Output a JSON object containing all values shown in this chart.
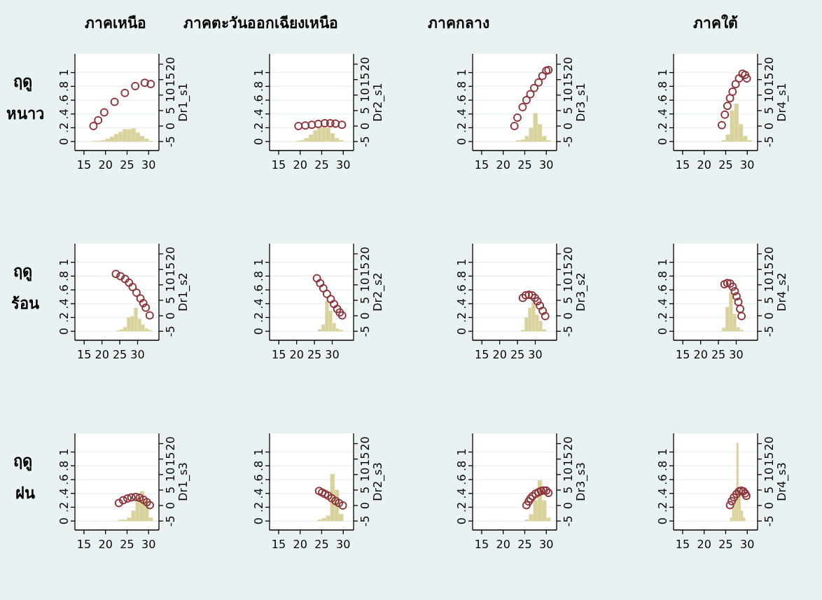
{
  "chart_data": [
    {
      "type": "scatter",
      "title": "ภาคเหนือ",
      "annotations": [
        "ฤดู หนาว"
      ],
      "y2label": "Dr1_s1",
      "xlim": [
        12.9,
        32.4
      ],
      "xticks": [
        15,
        20,
        25,
        30
      ],
      "ylim": [
        -0.13,
        1.27
      ],
      "yticks": [
        {
          "value": 0,
          "label": "0"
        },
        {
          "value": 0.2,
          "label": ".2"
        },
        {
          "value": 0.4,
          "label": ".4"
        },
        {
          "value": 0.6,
          "label": ".6"
        },
        {
          "value": 0.8,
          "label": ".8"
        },
        {
          "value": 1,
          "label": "1"
        }
      ],
      "y2lim": [
        -7.9,
        23.3
      ],
      "y2ticks": [
        -5,
        0,
        5,
        10,
        15,
        20
      ],
      "grid": "y",
      "marker": "circle",
      "series": [
        {
          "type": "histogram",
          "color": "#d9d29d",
          "bins": [
            17,
            18,
            19,
            20,
            21,
            22,
            23,
            24,
            25,
            26,
            27,
            28,
            29,
            30,
            31
          ],
          "values": [
            0.01,
            0.01,
            0.02,
            0.04,
            0.07,
            0.11,
            0.14,
            0.18,
            0.18,
            0.19,
            0.13,
            0.08,
            0.04,
            0.01
          ]
        },
        {
          "type": "scatter",
          "axis": "y2",
          "color": "#8c3339",
          "x": [
            17.2,
            18.3,
            19.7,
            22.1,
            24.5,
            26.9,
            29.1,
            30.5
          ],
          "values": [
            0.0,
            1.9,
            4.4,
            7.8,
            10.7,
            12.9,
            14.0,
            13.6
          ]
        }
      ]
    },
    {
      "type": "scatter",
      "title": "ภาคตะวันออกเฉียงเหนือ",
      "y2label": "Dr2_s1",
      "xlim": [
        12.9,
        32.4
      ],
      "xticks": [
        15,
        20,
        25,
        30
      ],
      "ylim": [
        -0.13,
        1.27
      ],
      "yticks": [
        {
          "value": 0,
          "label": "0"
        },
        {
          "value": 0.2,
          "label": ".2"
        },
        {
          "value": 0.4,
          "label": ".4"
        },
        {
          "value": 0.6,
          "label": ".6"
        },
        {
          "value": 0.8,
          "label": ".8"
        },
        {
          "value": 1,
          "label": "1"
        }
      ],
      "y2lim": [
        -7.9,
        23.3
      ],
      "y2ticks": [
        -5,
        0,
        5,
        10,
        15,
        20
      ],
      "grid": "y",
      "marker": "circle",
      "series": [
        {
          "type": "histogram",
          "color": "#d9d29d",
          "bins": [
            19,
            20,
            21,
            22,
            23,
            24,
            25,
            26,
            27,
            28,
            29,
            30
          ],
          "values": [
            0.01,
            0.02,
            0.05,
            0.1,
            0.16,
            0.2,
            0.2,
            0.2,
            0.12,
            0.05,
            0.02
          ]
        },
        {
          "type": "scatter",
          "axis": "y2",
          "color": "#8c3339",
          "x": [
            19.6,
            21.2,
            22.7,
            24.2,
            25.7,
            27.0,
            28.2,
            29.7
          ],
          "values": [
            0.0,
            0.2,
            0.4,
            0.7,
            0.9,
            0.9,
            0.8,
            0.4
          ]
        }
      ]
    },
    {
      "type": "scatter",
      "title": "ภาคกลาง",
      "y2label": "Dr3_s1",
      "xlim": [
        12.9,
        32.4
      ],
      "xticks": [
        15,
        20,
        25,
        30
      ],
      "ylim": [
        -0.13,
        1.27
      ],
      "yticks": [
        {
          "value": 0,
          "label": "0"
        },
        {
          "value": 0.2,
          "label": ".2"
        },
        {
          "value": 0.4,
          "label": ".4"
        },
        {
          "value": 0.6,
          "label": ".6"
        },
        {
          "value": 0.8,
          "label": ".8"
        },
        {
          "value": 1,
          "label": "1"
        }
      ],
      "y2lim": [
        -7.9,
        23.3
      ],
      "y2ticks": [
        -5,
        0,
        5,
        10,
        15,
        20
      ],
      "grid": "y",
      "marker": "circle",
      "series": [
        {
          "type": "histogram",
          "color": "#d9d29d",
          "bins": [
            23,
            24,
            25,
            26,
            27,
            28,
            29,
            30,
            31
          ],
          "values": [
            0.02,
            0.03,
            0.08,
            0.2,
            0.41,
            0.25,
            0.08,
            0.02
          ]
        },
        {
          "type": "scatter",
          "axis": "y2",
          "color": "#8c3339",
          "x": [
            22.6,
            23.3,
            24.5,
            25.4,
            26.3,
            27.2,
            28.2,
            29.1,
            30.0,
            30.5
          ],
          "values": [
            0.0,
            2.7,
            6.1,
            8.4,
            10.3,
            12.3,
            14.1,
            16.2,
            17.9,
            18.1
          ]
        }
      ]
    },
    {
      "type": "scatter",
      "title": "ภาคใต้",
      "y2label": "Dr4_s1",
      "xlim": [
        12.9,
        32.4
      ],
      "xticks": [
        15,
        20,
        25,
        30
      ],
      "ylim": [
        -0.13,
        1.27
      ],
      "yticks": [
        {
          "value": 0,
          "label": "0"
        },
        {
          "value": 0.2,
          "label": ".2"
        },
        {
          "value": 0.4,
          "label": ".4"
        },
        {
          "value": 0.6,
          "label": ".6"
        },
        {
          "value": 0.8,
          "label": ".8"
        },
        {
          "value": 1,
          "label": "1"
        }
      ],
      "y2lim": [
        -7.9,
        23.3
      ],
      "y2ticks": [
        -5,
        0,
        5,
        10,
        15,
        20
      ],
      "grid": "y",
      "marker": "circle",
      "series": [
        {
          "type": "histogram",
          "color": "#d9d29d",
          "bins": [
            24,
            25,
            26,
            27,
            28,
            29,
            30,
            31
          ],
          "values": [
            0.02,
            0.1,
            0.45,
            0.55,
            0.25,
            0.08,
            0.02
          ]
        },
        {
          "type": "scatter",
          "axis": "y2",
          "color": "#8c3339",
          "x": [
            24.1,
            24.8,
            25.4,
            26.0,
            26.6,
            27.3,
            28.1,
            28.9,
            29.5,
            29.9
          ],
          "values": [
            0.3,
            3.7,
            6.5,
            9.0,
            11.1,
            13.5,
            15.4,
            16.9,
            16.5,
            15.4
          ]
        }
      ]
    },
    {
      "type": "scatter",
      "annotations": [
        "ฤดู ร้อน"
      ],
      "y2label": "Dr1_s2",
      "xlim": [
        12.4,
        36
      ],
      "xticks": [
        15,
        20,
        25,
        30
      ],
      "ylim": [
        -0.13,
        1.27
      ],
      "yticks": [
        {
          "value": 0,
          "label": "0"
        },
        {
          "value": 0.2,
          "label": ".2"
        },
        {
          "value": 0.4,
          "label": ".4"
        },
        {
          "value": 0.6,
          "label": ".6"
        },
        {
          "value": 0.8,
          "label": ".8"
        },
        {
          "value": 1,
          "label": "1"
        }
      ],
      "y2lim": [
        -7.9,
        23.3
      ],
      "y2ticks": [
        -5,
        0,
        5,
        10,
        15,
        20
      ],
      "grid": "y",
      "marker": "circle",
      "series": [
        {
          "type": "histogram",
          "color": "#d9d29d",
          "bins": [
            24,
            25,
            26,
            27,
            28,
            29,
            30,
            31,
            32,
            33,
            34
          ],
          "values": [
            0.01,
            0.03,
            0.06,
            0.2,
            0.22,
            0.34,
            0.18,
            0.1,
            0.04,
            0.02
          ]
        },
        {
          "type": "scatter",
          "axis": "y2",
          "color": "#8c3339",
          "x": [
            23.9,
            25.2,
            26.5,
            27.6,
            28.6,
            29.7,
            30.8,
            31.6,
            32.3,
            33.4
          ],
          "values": [
            13.5,
            12.8,
            11.9,
            10.7,
            9.3,
            7.5,
            5.6,
            4.1,
            2.6,
            0.1
          ]
        }
      ]
    },
    {
      "type": "scatter",
      "y2label": "Dr2_s2",
      "xlim": [
        12.4,
        36
      ],
      "xticks": [
        15,
        20,
        25,
        30
      ],
      "ylim": [
        -0.13,
        1.27
      ],
      "yticks": [
        {
          "value": 0,
          "label": "0"
        },
        {
          "value": 0.2,
          "label": ".2"
        },
        {
          "value": 0.4,
          "label": ".4"
        },
        {
          "value": 0.6,
          "label": ".6"
        },
        {
          "value": 0.8,
          "label": ".8"
        },
        {
          "value": 1,
          "label": "1"
        }
      ],
      "y2lim": [
        -7.9,
        23.3
      ],
      "y2ticks": [
        -5,
        0,
        5,
        10,
        15,
        20
      ],
      "grid": "y",
      "marker": "circle",
      "series": [
        {
          "type": "histogram",
          "color": "#d9d29d",
          "bins": [
            26,
            27,
            28,
            29,
            30,
            31,
            32,
            33
          ],
          "values": [
            0.03,
            0.1,
            0.44,
            0.3,
            0.12,
            0.04,
            0.02
          ]
        },
        {
          "type": "scatter",
          "axis": "y2",
          "color": "#8c3339",
          "x": [
            25.7,
            26.6,
            27.5,
            28.5,
            29.6,
            30.5,
            31.4,
            32.1,
            32.8
          ],
          "values": [
            12.1,
            10.5,
            8.9,
            7.1,
            5.4,
            3.8,
            2.2,
            1.1,
            0.1
          ]
        }
      ]
    },
    {
      "type": "scatter",
      "y2label": "Dr3_s2",
      "xlim": [
        12.4,
        36
      ],
      "xticks": [
        15,
        20,
        25,
        30
      ],
      "ylim": [
        -0.13,
        1.27
      ],
      "yticks": [
        {
          "value": 0,
          "label": "0"
        },
        {
          "value": 0.2,
          "label": ".2"
        },
        {
          "value": 0.4,
          "label": ".4"
        },
        {
          "value": 0.6,
          "label": ".6"
        },
        {
          "value": 0.8,
          "label": ".8"
        },
        {
          "value": 1,
          "label": "1"
        }
      ],
      "y2lim": [
        -7.9,
        23.3
      ],
      "y2ticks": [
        -5,
        0,
        5,
        10,
        15,
        20
      ],
      "grid": "y",
      "marker": "circle",
      "series": [
        {
          "type": "histogram",
          "color": "#d9d29d",
          "bins": [
            26,
            27,
            28,
            29,
            30,
            31,
            32,
            33
          ],
          "values": [
            0.02,
            0.2,
            0.34,
            0.42,
            0.24,
            0.15,
            0.03
          ]
        },
        {
          "type": "scatter",
          "axis": "y2",
          "color": "#8c3339",
          "x": [
            26.5,
            27.3,
            28.2,
            29.1,
            29.9,
            30.6,
            31.3,
            32.1,
            32.8
          ],
          "values": [
            5.8,
            6.6,
            6.8,
            6.6,
            5.8,
            4.7,
            3.3,
            1.6,
            -0.1
          ]
        }
      ]
    },
    {
      "type": "scatter",
      "y2label": "Dr4_s2",
      "xlim": [
        12.4,
        36
      ],
      "xticks": [
        15,
        20,
        25,
        30
      ],
      "ylim": [
        -0.13,
        1.27
      ],
      "yticks": [
        {
          "value": 0,
          "label": "0"
        },
        {
          "value": 0.2,
          "label": ".2"
        },
        {
          "value": 0.4,
          "label": ".4"
        },
        {
          "value": 0.6,
          "label": ".6"
        },
        {
          "value": 0.8,
          "label": ".8"
        },
        {
          "value": 1,
          "label": "1"
        }
      ],
      "y2lim": [
        -7.9,
        23.3
      ],
      "y2ticks": [
        -5,
        0,
        5,
        10,
        15,
        20
      ],
      "grid": "y",
      "marker": "circle",
      "series": [
        {
          "type": "histogram",
          "color": "#d9d29d",
          "bins": [
            26,
            27,
            28,
            29,
            30,
            31,
            32
          ],
          "values": [
            0.05,
            0.35,
            0.56,
            0.25,
            0.06,
            0.02
          ]
        },
        {
          "type": "scatter",
          "axis": "y2",
          "color": "#8c3339",
          "x": [
            26.7,
            27.5,
            28.3,
            29.0,
            29.6,
            30.1,
            30.6,
            31.1,
            31.5
          ],
          "values": [
            10.2,
            10.6,
            10.4,
            9.4,
            7.9,
            6.3,
            4.5,
            2.2,
            -0.1
          ]
        }
      ]
    },
    {
      "type": "scatter",
      "annotations": [
        "ฤดู ฝน"
      ],
      "y2label": "Dr1_s3",
      "xlim": [
        12.9,
        32.4
      ],
      "xticks": [
        15,
        20,
        25,
        30
      ],
      "ylim": [
        -0.13,
        1.27
      ],
      "yticks": [
        {
          "value": 0,
          "label": "0"
        },
        {
          "value": 0.2,
          "label": ".2"
        },
        {
          "value": 0.4,
          "label": ".4"
        },
        {
          "value": 0.6,
          "label": ".6"
        },
        {
          "value": 0.8,
          "label": ".8"
        },
        {
          "value": 1,
          "label": "1"
        }
      ],
      "y2lim": [
        -7.9,
        23.3
      ],
      "y2ticks": [
        -5,
        0,
        5,
        10,
        15,
        20
      ],
      "grid": "y",
      "marker": "circle",
      "series": [
        {
          "type": "histogram",
          "color": "#d9d29d",
          "bins": [
            23,
            24,
            25,
            26,
            27,
            28,
            29,
            30,
            31
          ],
          "values": [
            0.02,
            0.02,
            0.05,
            0.15,
            0.35,
            0.43,
            0.3,
            0.05
          ]
        },
        {
          "type": "scatter",
          "axis": "y2",
          "color": "#8c3339",
          "x": [
            23.1,
            24.1,
            25.1,
            26.0,
            27.0,
            27.9,
            28.8,
            29.6,
            30.3
          ],
          "values": [
            0.8,
            1.7,
            2.3,
            2.6,
            2.8,
            2.5,
            1.9,
            1.1,
            0.1
          ]
        }
      ]
    },
    {
      "type": "scatter",
      "y2label": "Dr2_s3",
      "xlim": [
        12.9,
        32.4
      ],
      "xticks": [
        15,
        20,
        25,
        30
      ],
      "ylim": [
        -0.13,
        1.27
      ],
      "yticks": [
        {
          "value": 0,
          "label": "0"
        },
        {
          "value": 0.2,
          "label": ".2"
        },
        {
          "value": 0.4,
          "label": ".4"
        },
        {
          "value": 0.6,
          "label": ".6"
        },
        {
          "value": 0.8,
          "label": ".8"
        },
        {
          "value": 1,
          "label": "1"
        }
      ],
      "y2lim": [
        -7.9,
        23.3
      ],
      "y2ticks": [
        -5,
        0,
        5,
        10,
        15,
        20
      ],
      "grid": "y",
      "marker": "circle",
      "series": [
        {
          "type": "histogram",
          "color": "#d9d29d",
          "bins": [
            24,
            25,
            26,
            27,
            28,
            29,
            30
          ],
          "values": [
            0.02,
            0.04,
            0.08,
            0.68,
            0.45,
            0.1
          ]
        },
        {
          "type": "scatter",
          "axis": "y2",
          "color": "#8c3339",
          "x": [
            24.4,
            25.1,
            25.8,
            26.5,
            27.3,
            28.2,
            29.0,
            29.9
          ],
          "values": [
            4.7,
            4.2,
            3.7,
            3.2,
            2.4,
            1.5,
            0.8,
            0.0
          ]
        }
      ]
    },
    {
      "type": "scatter",
      "y2label": "Dr3_s3",
      "xlim": [
        12.9,
        32.4
      ],
      "xticks": [
        15,
        20,
        25,
        30
      ],
      "ylim": [
        -0.13,
        1.27
      ],
      "yticks": [
        {
          "value": 0,
          "label": "0"
        },
        {
          "value": 0.2,
          "label": ".2"
        },
        {
          "value": 0.4,
          "label": ".4"
        },
        {
          "value": 0.6,
          "label": ".6"
        },
        {
          "value": 0.8,
          "label": ".8"
        },
        {
          "value": 1,
          "label": "1"
        }
      ],
      "y2lim": [
        -7.9,
        23.3
      ],
      "y2ticks": [
        -5,
        0,
        5,
        10,
        15,
        20
      ],
      "grid": "y",
      "marker": "circle",
      "series": [
        {
          "type": "histogram",
          "color": "#d9d29d",
          "bins": [
            25,
            26,
            27,
            28,
            29,
            30,
            31
          ],
          "values": [
            0.02,
            0.1,
            0.3,
            0.59,
            0.3,
            0.05
          ]
        },
        {
          "type": "scatter",
          "axis": "y2",
          "color": "#8c3339",
          "x": [
            25.4,
            25.9,
            26.3,
            26.8,
            27.5,
            28.2,
            28.8,
            29.4,
            30.0,
            30.5
          ],
          "values": [
            0.1,
            1.3,
            2.2,
            3.0,
            3.8,
            4.3,
            4.7,
            4.9,
            4.8,
            4.1
          ]
        }
      ]
    },
    {
      "type": "scatter",
      "y2label": "Dr4_s3",
      "xlim": [
        12.9,
        32.4
      ],
      "xticks": [
        15,
        20,
        25,
        30
      ],
      "ylim": [
        -0.13,
        1.27
      ],
      "yticks": [
        {
          "value": 0,
          "label": "0"
        },
        {
          "value": 0.2,
          "label": ".2"
        },
        {
          "value": 0.4,
          "label": ".4"
        },
        {
          "value": 0.6,
          "label": ".6"
        },
        {
          "value": 0.8,
          "label": ".8"
        },
        {
          "value": 1,
          "label": "1"
        }
      ],
      "y2lim": [
        -7.9,
        23.3
      ],
      "y2ticks": [
        -5,
        0,
        5,
        10,
        15,
        20
      ],
      "grid": "y",
      "marker": "circle",
      "series": [
        {
          "type": "histogram",
          "color": "#d9d29d",
          "bins": [
            26,
            26.5,
            27,
            27.5,
            28,
            28.5,
            29,
            29.5
          ],
          "values": [
            0.05,
            0.2,
            0.45,
            1.13,
            0.4,
            0.15,
            0.05
          ]
        },
        {
          "type": "scatter",
          "axis": "y2",
          "color": "#8c3339",
          "x": [
            26.0,
            26.4,
            26.9,
            27.5,
            28.1,
            28.6,
            29.1,
            29.5,
            29.8
          ],
          "values": [
            0.1,
            1.4,
            2.6,
            3.7,
            4.6,
            4.8,
            4.6,
            3.9,
            3.1
          ]
        }
      ]
    }
  ]
}
